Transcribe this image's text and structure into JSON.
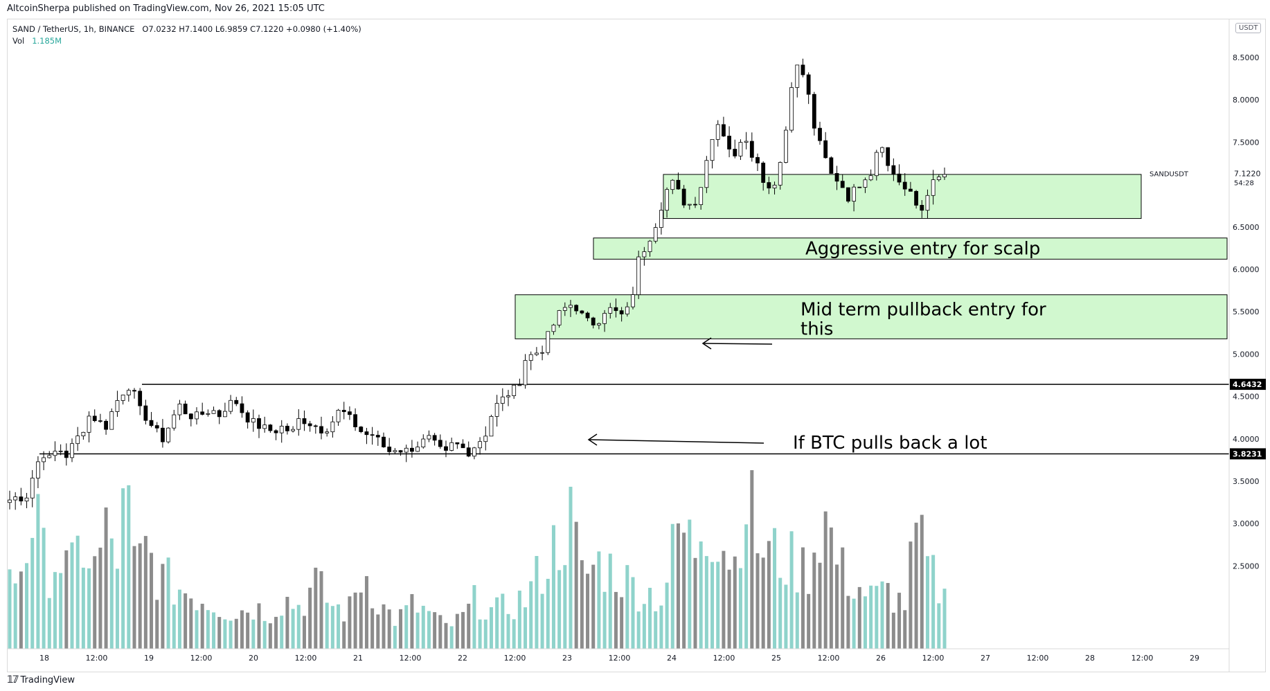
{
  "header": {
    "published": "AltcoinSherpa published on TradingView.com, Nov 26, 2021 15:05 UTC"
  },
  "legend": {
    "symbol": "SAND / TetherUS, 1h, BINANCE",
    "ohlc": "O7.0232  H7.1400  L6.9859  C7.1220  +0.0980 (+1.40%)",
    "vol_label": "Vol",
    "vol_value": "1.185M"
  },
  "axis": {
    "unit": "USDT"
  },
  "footer": {
    "brand": "TradingView"
  },
  "chart_data": {
    "type": "candlestick",
    "symbol": "SANDUSDT",
    "interval": "1h",
    "price_axis": {
      "ticks": [
        3.5,
        4.0,
        4.5,
        5.0,
        5.5,
        6.0,
        6.5,
        7.5,
        8.0,
        8.5
      ],
      "tick_labels": [
        "3.5000",
        "4.0000",
        "4.5000",
        "5.0000",
        "5.5000",
        "6.0000",
        "6.5000",
        "7.5000",
        "8.0000",
        "8.5000"
      ],
      "volume_area_labels": [
        "2.5000",
        "3.0000"
      ],
      "range": [
        2.0,
        8.8
      ]
    },
    "time_axis": {
      "labels": [
        "18",
        "12:00",
        "19",
        "12:00",
        "20",
        "12:00",
        "21",
        "12:00",
        "22",
        "12:00",
        "23",
        "12:00",
        "24",
        "12:00",
        "25",
        "12:00",
        "26",
        "12:00",
        "27",
        "12:00",
        "28",
        "12:00",
        "29"
      ]
    },
    "last_price": {
      "label": "SANDUSDT",
      "value": "7.1220",
      "countdown": "54:28"
    },
    "levels": [
      {
        "price": 4.6432,
        "label": "4.6432",
        "color": "#000000"
      },
      {
        "price": 3.8231,
        "label": "3.8231",
        "color": "#000000"
      }
    ],
    "zones": [
      {
        "top": 7.12,
        "bottom": 6.6,
        "text": ""
      },
      {
        "top": 6.37,
        "bottom": 6.12,
        "text": "Aggressive entry for scalp"
      },
      {
        "top": 5.7,
        "bottom": 5.18,
        "text": "Mid term pullback entry for this"
      }
    ],
    "annotations": [
      {
        "text": "If BTC pulls back a lot"
      }
    ],
    "price_path": [
      [
        0,
        3.28
      ],
      [
        10,
        3.32
      ],
      [
        20,
        3.3
      ],
      [
        30,
        3.6
      ],
      [
        40,
        3.85
      ],
      [
        50,
        3.75
      ],
      [
        60,
        3.9
      ],
      [
        70,
        3.8
      ],
      [
        80,
        3.95
      ],
      [
        90,
        4.1
      ],
      [
        100,
        4.3
      ],
      [
        110,
        4.2
      ],
      [
        120,
        4.15
      ],
      [
        130,
        4.4
      ],
      [
        140,
        4.55
      ],
      [
        150,
        4.65
      ],
      [
        160,
        4.35
      ],
      [
        170,
        4.25
      ],
      [
        180,
        4.1
      ],
      [
        190,
        4.0
      ],
      [
        200,
        4.2
      ],
      [
        210,
        4.4
      ],
      [
        220,
        4.3
      ],
      [
        230,
        4.25
      ],
      [
        240,
        4.3
      ],
      [
        250,
        4.35
      ],
      [
        260,
        4.28
      ],
      [
        270,
        4.4
      ],
      [
        280,
        4.45
      ],
      [
        290,
        4.3
      ],
      [
        300,
        4.2
      ],
      [
        310,
        4.15
      ],
      [
        320,
        4.1
      ],
      [
        330,
        4.1
      ],
      [
        340,
        4.15
      ],
      [
        350,
        4.05
      ],
      [
        360,
        4.25
      ],
      [
        370,
        4.2
      ],
      [
        380,
        4.15
      ],
      [
        390,
        4.1
      ],
      [
        400,
        4.2
      ],
      [
        410,
        4.35
      ],
      [
        420,
        4.25
      ],
      [
        430,
        4.15
      ],
      [
        440,
        4.05
      ],
      [
        450,
        4.05
      ],
      [
        460,
        3.95
      ],
      [
        470,
        3.85
      ],
      [
        480,
        3.9
      ],
      [
        490,
        3.85
      ],
      [
        500,
        3.9
      ],
      [
        510,
        3.95
      ],
      [
        520,
        4.0
      ],
      [
        530,
        3.9
      ],
      [
        540,
        3.8
      ],
      [
        550,
        3.95
      ],
      [
        560,
        3.9
      ],
      [
        570,
        3.85
      ],
      [
        580,
        3.95
      ],
      [
        590,
        4.05
      ],
      [
        600,
        4.35
      ],
      [
        610,
        4.45
      ],
      [
        620,
        4.55
      ],
      [
        630,
        4.6
      ],
      [
        640,
        4.95
      ],
      [
        650,
        5.0
      ],
      [
        660,
        5.05
      ],
      [
        670,
        5.25
      ],
      [
        680,
        5.45
      ],
      [
        690,
        5.55
      ],
      [
        700,
        5.6
      ],
      [
        710,
        5.45
      ],
      [
        720,
        5.35
      ],
      [
        730,
        5.4
      ],
      [
        740,
        5.55
      ],
      [
        750,
        5.5
      ],
      [
        760,
        5.45
      ],
      [
        770,
        5.55
      ],
      [
        780,
        6.1
      ],
      [
        790,
        6.3
      ],
      [
        800,
        6.5
      ],
      [
        810,
        6.8
      ],
      [
        820,
        7.05
      ],
      [
        830,
        6.9
      ],
      [
        840,
        6.75
      ],
      [
        850,
        6.8
      ],
      [
        860,
        7.05
      ],
      [
        870,
        7.55
      ],
      [
        880,
        7.75
      ],
      [
        890,
        7.5
      ],
      [
        900,
        7.3
      ],
      [
        910,
        7.65
      ],
      [
        920,
        7.4
      ],
      [
        930,
        7.2
      ],
      [
        940,
        6.95
      ],
      [
        950,
        7.05
      ],
      [
        960,
        7.4
      ],
      [
        970,
        8.2
      ],
      [
        980,
        8.45
      ],
      [
        990,
        8.1
      ],
      [
        1000,
        7.6
      ],
      [
        1010,
        7.35
      ],
      [
        1020,
        7.1
      ],
      [
        1030,
        7.05
      ],
      [
        1040,
        6.85
      ],
      [
        1050,
        6.95
      ],
      [
        1060,
        7.1
      ],
      [
        1070,
        7.15
      ],
      [
        1080,
        7.6
      ],
      [
        1090,
        7.2
      ],
      [
        1100,
        7.1
      ],
      [
        1110,
        6.95
      ],
      [
        1120,
        6.85
      ],
      [
        1130,
        6.65
      ],
      [
        1140,
        6.95
      ],
      [
        1150,
        7.05
      ],
      [
        1160,
        7.12
      ]
    ],
    "volume_path": [
      [
        0,
        0.45
      ],
      [
        15,
        0.6
      ],
      [
        30,
        0.95
      ],
      [
        45,
        0.55
      ],
      [
        60,
        0.65
      ],
      [
        75,
        0.5
      ],
      [
        90,
        0.75
      ],
      [
        105,
        0.55
      ],
      [
        120,
        0.8
      ],
      [
        135,
        0.65
      ],
      [
        145,
        1.1
      ],
      [
        155,
        0.55
      ],
      [
        170,
        0.7
      ],
      [
        185,
        0.5
      ],
      [
        200,
        0.45
      ],
      [
        220,
        0.4
      ],
      [
        240,
        0.35
      ],
      [
        260,
        0.3
      ],
      [
        280,
        0.25
      ],
      [
        300,
        0.3
      ],
      [
        320,
        0.25
      ],
      [
        340,
        0.35
      ],
      [
        360,
        0.3
      ],
      [
        380,
        0.45
      ],
      [
        400,
        0.3
      ],
      [
        420,
        0.25
      ],
      [
        440,
        0.55
      ],
      [
        460,
        0.3
      ],
      [
        480,
        0.2
      ],
      [
        500,
        0.3
      ],
      [
        520,
        0.25
      ],
      [
        540,
        0.15
      ],
      [
        560,
        0.2
      ],
      [
        580,
        0.35
      ],
      [
        600,
        0.25
      ],
      [
        620,
        0.3
      ],
      [
        640,
        0.35
      ],
      [
        660,
        0.55
      ],
      [
        680,
        0.75
      ],
      [
        697,
        0.9
      ],
      [
        710,
        0.5
      ],
      [
        730,
        0.6
      ],
      [
        750,
        0.55
      ],
      [
        770,
        0.45
      ],
      [
        790,
        0.4
      ],
      [
        810,
        0.35
      ],
      [
        830,
        0.85
      ],
      [
        850,
        0.7
      ],
      [
        860,
        0.95
      ],
      [
        880,
        0.8
      ],
      [
        900,
        0.6
      ],
      [
        912,
        1.15
      ],
      [
        930,
        0.7
      ],
      [
        950,
        0.65
      ],
      [
        970,
        0.6
      ],
      [
        990,
        0.55
      ],
      [
        1010,
        0.95
      ],
      [
        1030,
        0.55
      ],
      [
        1050,
        0.45
      ],
      [
        1070,
        0.35
      ],
      [
        1090,
        0.4
      ],
      [
        1110,
        0.3
      ],
      [
        1125,
        0.8
      ],
      [
        1140,
        0.55
      ],
      [
        1160,
        0.35
      ]
    ]
  }
}
